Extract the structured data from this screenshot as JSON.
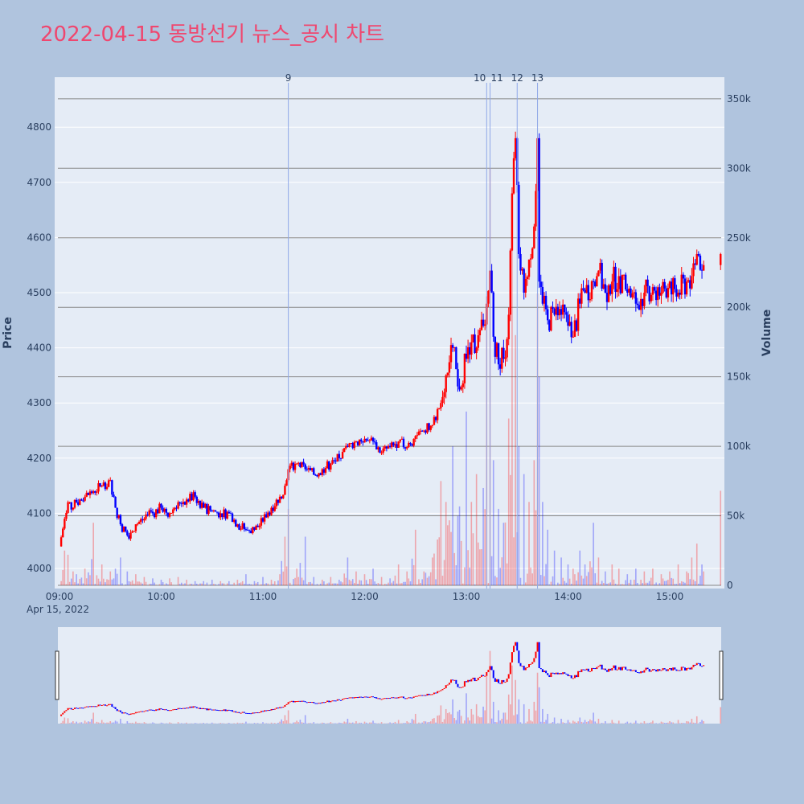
{
  "title": "2022-04-15 동방선기 뉴스_공시 차트",
  "chart_data": {
    "type": "candlestick",
    "title": "2022-04-15 동방선기 뉴스_공시 차트",
    "date_label": "Apr 15, 2022",
    "ylabel": "Price",
    "y2label": "Volume",
    "ylim": [
      3965,
      4890
    ],
    "y2lim": [
      0,
      365000
    ],
    "price_ticks": [
      4000,
      4100,
      4200,
      4300,
      4400,
      4500,
      4600,
      4700,
      4800
    ],
    "volume_ticks": [
      0,
      50000,
      100000,
      150000,
      200000,
      250000,
      300000,
      350000
    ],
    "volume_tick_labels": [
      "0",
      "50k",
      "100k",
      "150k",
      "200k",
      "250k",
      "300k",
      "350k"
    ],
    "x_ticks": [
      "09:00",
      "10:00",
      "11:00",
      "12:00",
      "13:00",
      "14:00",
      "15:00"
    ],
    "x_range": [
      "09:00",
      "15:31"
    ],
    "colors": {
      "increasing": "#ff0000",
      "decreasing": "#0000ff",
      "event_line": "#8fa8e8",
      "title": "#ef476f"
    },
    "events": [
      {
        "label": "9",
        "time": "11:15"
      },
      {
        "label": "10",
        "time": "13:12"
      },
      {
        "label": "11",
        "time": "13:14"
      },
      {
        "label": "12",
        "time": "13:30"
      },
      {
        "label": "13",
        "time": "13:42"
      }
    ],
    "legend": "none",
    "rangeslider": true,
    "series_close": [
      [
        "09:00",
        4040,
        40
      ],
      [
        "09:03",
        4090,
        25
      ],
      [
        "09:05",
        4120,
        22
      ],
      [
        "09:08",
        4110,
        10
      ],
      [
        "09:10",
        4120,
        8
      ],
      [
        "09:15",
        4130,
        12
      ],
      [
        "09:20",
        4140,
        45
      ],
      [
        "09:25",
        4150,
        15
      ],
      [
        "09:30",
        4160,
        10
      ],
      [
        "09:33",
        4110,
        12
      ],
      [
        "09:36",
        4080,
        20
      ],
      [
        "09:40",
        4060,
        10
      ],
      [
        "09:45",
        4080,
        8
      ],
      [
        "09:50",
        4090,
        6
      ],
      [
        "09:55",
        4100,
        5
      ],
      [
        "10:00",
        4110,
        4
      ],
      [
        "10:05",
        4100,
        5
      ],
      [
        "10:10",
        4120,
        6
      ],
      [
        "10:15",
        4125,
        4
      ],
      [
        "10:20",
        4130,
        3
      ],
      [
        "10:25",
        4110,
        3
      ],
      [
        "10:30",
        4105,
        4
      ],
      [
        "10:35",
        4100,
        3
      ],
      [
        "10:40",
        4100,
        3
      ],
      [
        "10:45",
        4080,
        4
      ],
      [
        "10:50",
        4070,
        8
      ],
      [
        "10:55",
        4070,
        3
      ],
      [
        "11:00",
        4085,
        6
      ],
      [
        "11:05",
        4110,
        4
      ],
      [
        "11:10",
        4130,
        8
      ],
      [
        "11:13",
        4150,
        35
      ],
      [
        "11:15",
        4180,
        55
      ],
      [
        "11:20",
        4190,
        12
      ],
      [
        "11:25",
        4180,
        35
      ],
      [
        "11:30",
        4170,
        6
      ],
      [
        "11:35",
        4180,
        4
      ],
      [
        "11:40",
        4190,
        6
      ],
      [
        "11:45",
        4200,
        4
      ],
      [
        "11:50",
        4220,
        20
      ],
      [
        "11:55",
        4230,
        10
      ],
      [
        "12:00",
        4235,
        8
      ],
      [
        "12:05",
        4230,
        12
      ],
      [
        "12:10",
        4210,
        6
      ],
      [
        "12:15",
        4220,
        5
      ],
      [
        "12:20",
        4230,
        15
      ],
      [
        "12:25",
        4220,
        10
      ],
      [
        "12:30",
        4240,
        40
      ],
      [
        "12:35",
        4250,
        10
      ],
      [
        "12:40",
        4260,
        20
      ],
      [
        "12:45",
        4300,
        75
      ],
      [
        "12:48",
        4350,
        60
      ],
      [
        "12:52",
        4400,
        100
      ],
      [
        "12:55",
        4330,
        50
      ],
      [
        "13:00",
        4380,
        125
      ],
      [
        "13:03",
        4410,
        60
      ],
      [
        "13:06",
        4400,
        80
      ],
      [
        "13:10",
        4440,
        70
      ],
      [
        "13:12",
        4480,
        200
      ],
      [
        "13:14",
        4540,
        300
      ],
      [
        "13:16",
        4420,
        90
      ],
      [
        "13:19",
        4370,
        55
      ],
      [
        "13:22",
        4380,
        45
      ],
      [
        "13:25",
        4460,
        120
      ],
      [
        "13:27",
        4680,
        240
      ],
      [
        "13:29",
        4780,
        180
      ],
      [
        "13:31",
        4570,
        100
      ],
      [
        "13:34",
        4500,
        80
      ],
      [
        "13:37",
        4560,
        60
      ],
      [
        "13:40",
        4620,
        90
      ],
      [
        "13:42",
        4780,
        210
      ],
      [
        "13:43",
        4520,
        150
      ],
      [
        "13:45",
        4480,
        60
      ],
      [
        "13:48",
        4450,
        40
      ],
      [
        "13:52",
        4460,
        25
      ],
      [
        "13:56",
        4460,
        20
      ],
      [
        "14:00",
        4440,
        15
      ],
      [
        "14:03",
        4420,
        12
      ],
      [
        "14:07",
        4480,
        25
      ],
      [
        "14:10",
        4500,
        15
      ],
      [
        "14:15",
        4520,
        45
      ],
      [
        "14:18",
        4540,
        20
      ],
      [
        "14:22",
        4500,
        10
      ],
      [
        "14:26",
        4520,
        15
      ],
      [
        "14:30",
        4530,
        12
      ],
      [
        "14:35",
        4500,
        8
      ],
      [
        "14:40",
        4480,
        12
      ],
      [
        "14:45",
        4500,
        10
      ],
      [
        "14:50",
        4510,
        12
      ],
      [
        "14:55",
        4500,
        8
      ],
      [
        "15:00",
        4520,
        10
      ],
      [
        "15:05",
        4500,
        15
      ],
      [
        "15:10",
        4520,
        10
      ],
      [
        "15:13",
        4530,
        20
      ],
      [
        "15:16",
        4570,
        30
      ],
      [
        "15:19",
        4540,
        15
      ],
      [
        "15:20",
        4550,
        10
      ],
      [
        "15:30",
        4570,
        68
      ]
    ]
  }
}
